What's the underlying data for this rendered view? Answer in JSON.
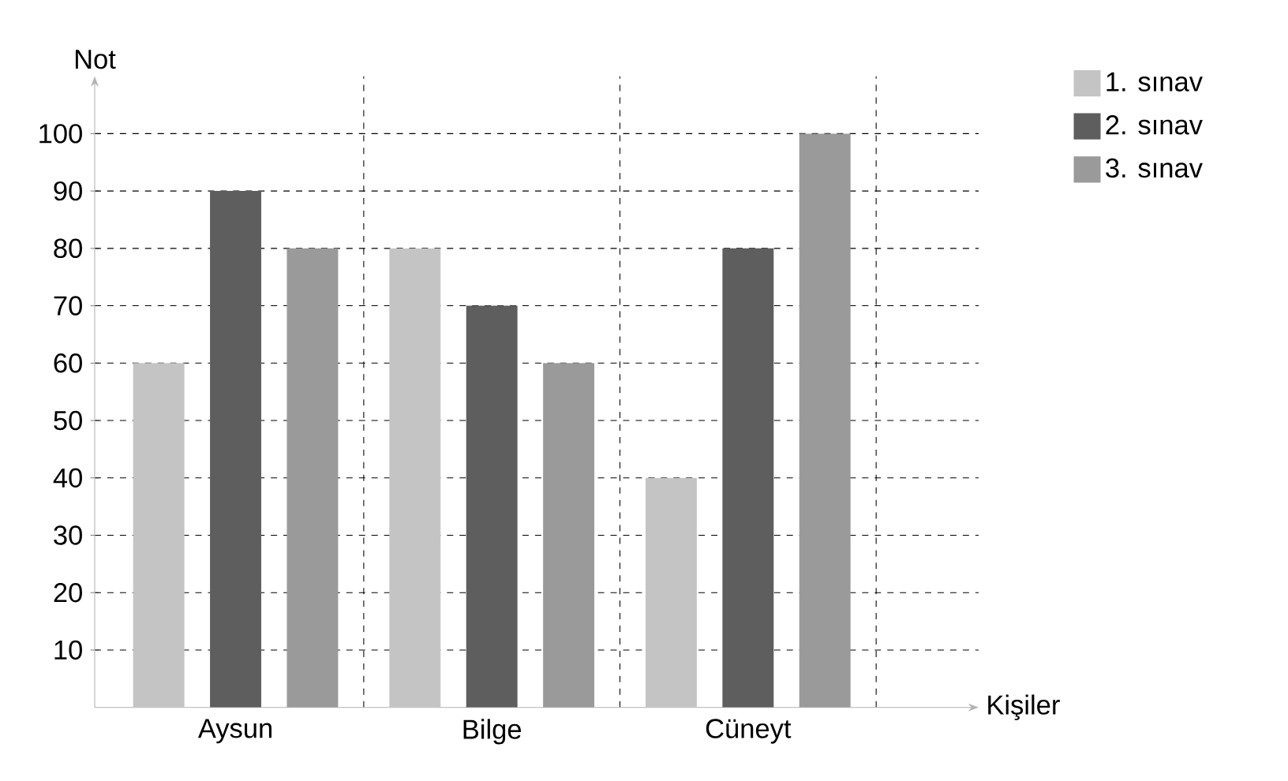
{
  "chart_data": {
    "type": "bar",
    "xlabel": "Kişiler",
    "ylabel": "Not",
    "categories": [
      "Aysun",
      "Bilge",
      "Cüneyt"
    ],
    "series": [
      {
        "name": "1. sınav",
        "color": "#c4c4c4",
        "values": [
          60,
          80,
          40
        ]
      },
      {
        "name": "2. sınav",
        "color": "#5e5e5e",
        "values": [
          90,
          70,
          80
        ]
      },
      {
        "name": "3. sınav",
        "color": "#9a9a9a",
        "values": [
          80,
          60,
          100
        ]
      }
    ],
    "ylim": [
      0,
      110
    ],
    "yticks": [
      10,
      20,
      30,
      40,
      50,
      60,
      70,
      80,
      90,
      100
    ],
    "grid": true,
    "legend": "top right"
  }
}
